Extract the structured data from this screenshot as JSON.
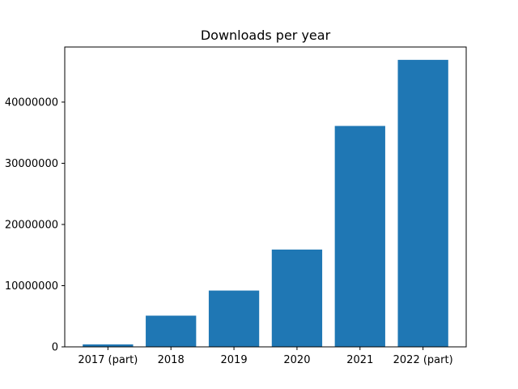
{
  "chart_data": {
    "type": "bar",
    "title": "Downloads per year",
    "xlabel": "",
    "ylabel": "",
    "categories": [
      "2017 (part)",
      "2018",
      "2019",
      "2020",
      "2021",
      "2022 (part)"
    ],
    "values": [
      400000,
      5100000,
      9200000,
      15900000,
      36100000,
      46900000
    ],
    "ylim": [
      0,
      49000000
    ],
    "yticks": [
      0,
      10000000,
      20000000,
      30000000,
      40000000
    ],
    "ytick_labels": [
      "0",
      "10000000",
      "20000000",
      "30000000",
      "40000000"
    ],
    "bar_color": "#1f77b4",
    "grid": false,
    "legend": "none"
  }
}
